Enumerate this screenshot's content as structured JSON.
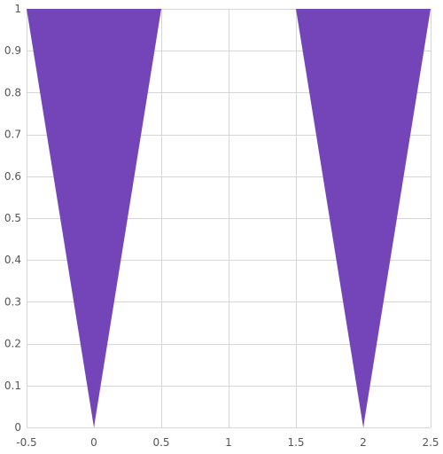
{
  "chart_data": {
    "type": "area",
    "title": "",
    "xlabel": "",
    "ylabel": "",
    "xlim": [
      -0.5,
      2.5
    ],
    "ylim": [
      0,
      1
    ],
    "grid": true,
    "x_ticks": [
      -0.5,
      0,
      0.5,
      1,
      1.5,
      2,
      2.5
    ],
    "x_tick_labels": [
      "-0.5",
      "0",
      "0.5",
      "1",
      "1.5",
      "2",
      "2.5"
    ],
    "y_ticks": [
      0,
      0.1,
      0.2,
      0.3,
      0.4,
      0.5,
      0.6,
      0.7,
      0.8,
      0.9,
      1
    ],
    "y_tick_labels": [
      "0",
      "0.1",
      "0.2",
      "0.3",
      "0.4",
      "0.5",
      "0.6",
      "0.7",
      "0.8",
      "0.9",
      "1"
    ],
    "series": [
      {
        "color": "#7444b9",
        "shapes": [
          {
            "points": [
              [
                -0.5,
                1
              ],
              [
                0.5,
                1
              ],
              [
                0,
                0
              ]
            ]
          },
          {
            "points": [
              [
                1.5,
                1
              ],
              [
                2.5,
                1
              ],
              [
                2,
                0
              ]
            ]
          }
        ]
      }
    ]
  }
}
